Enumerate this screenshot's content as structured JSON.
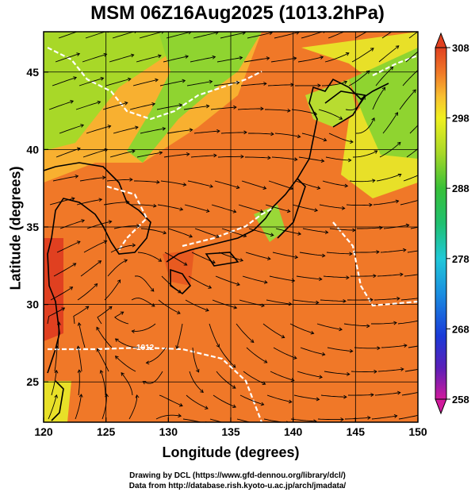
{
  "title": "MSM 06Z16Aug2025 (1013.2hPa)",
  "xaxis": {
    "label": "Longitude (degrees)",
    "range": [
      120,
      150
    ],
    "ticks": [
      "120",
      "125",
      "130",
      "135",
      "140",
      "145",
      "150"
    ]
  },
  "yaxis": {
    "label": "Latitude  (degrees)",
    "range": [
      22.4,
      47.6
    ],
    "ticks": [
      "25",
      "30",
      "35",
      "40",
      "45"
    ]
  },
  "colorbar": {
    "range": [
      258,
      308
    ],
    "ticks": [
      "308",
      "298",
      "288",
      "278",
      "268",
      "258"
    ],
    "colors": [
      "#d01a9c",
      "#5a1fb8",
      "#1a3ad8",
      "#1a8ee0",
      "#20c8d8",
      "#20c070",
      "#38c038",
      "#a8d828",
      "#f0f020",
      "#f8c030",
      "#f07828",
      "#e04020"
    ]
  },
  "contour_label": "1012",
  "credits": {
    "line1": "Drawing by DCL (https://www.gfd-dennou.org/library/dcl/)",
    "line2": "Data from http://database.rish.kyoto-u.ac.jp/arch/jmadata/"
  },
  "colors": {
    "warm": "#f07828",
    "hot": "#e04020",
    "mild": "#f0c030",
    "cool_green": "#8fd430",
    "isobar": "#ffffff",
    "land": "#000000"
  }
}
